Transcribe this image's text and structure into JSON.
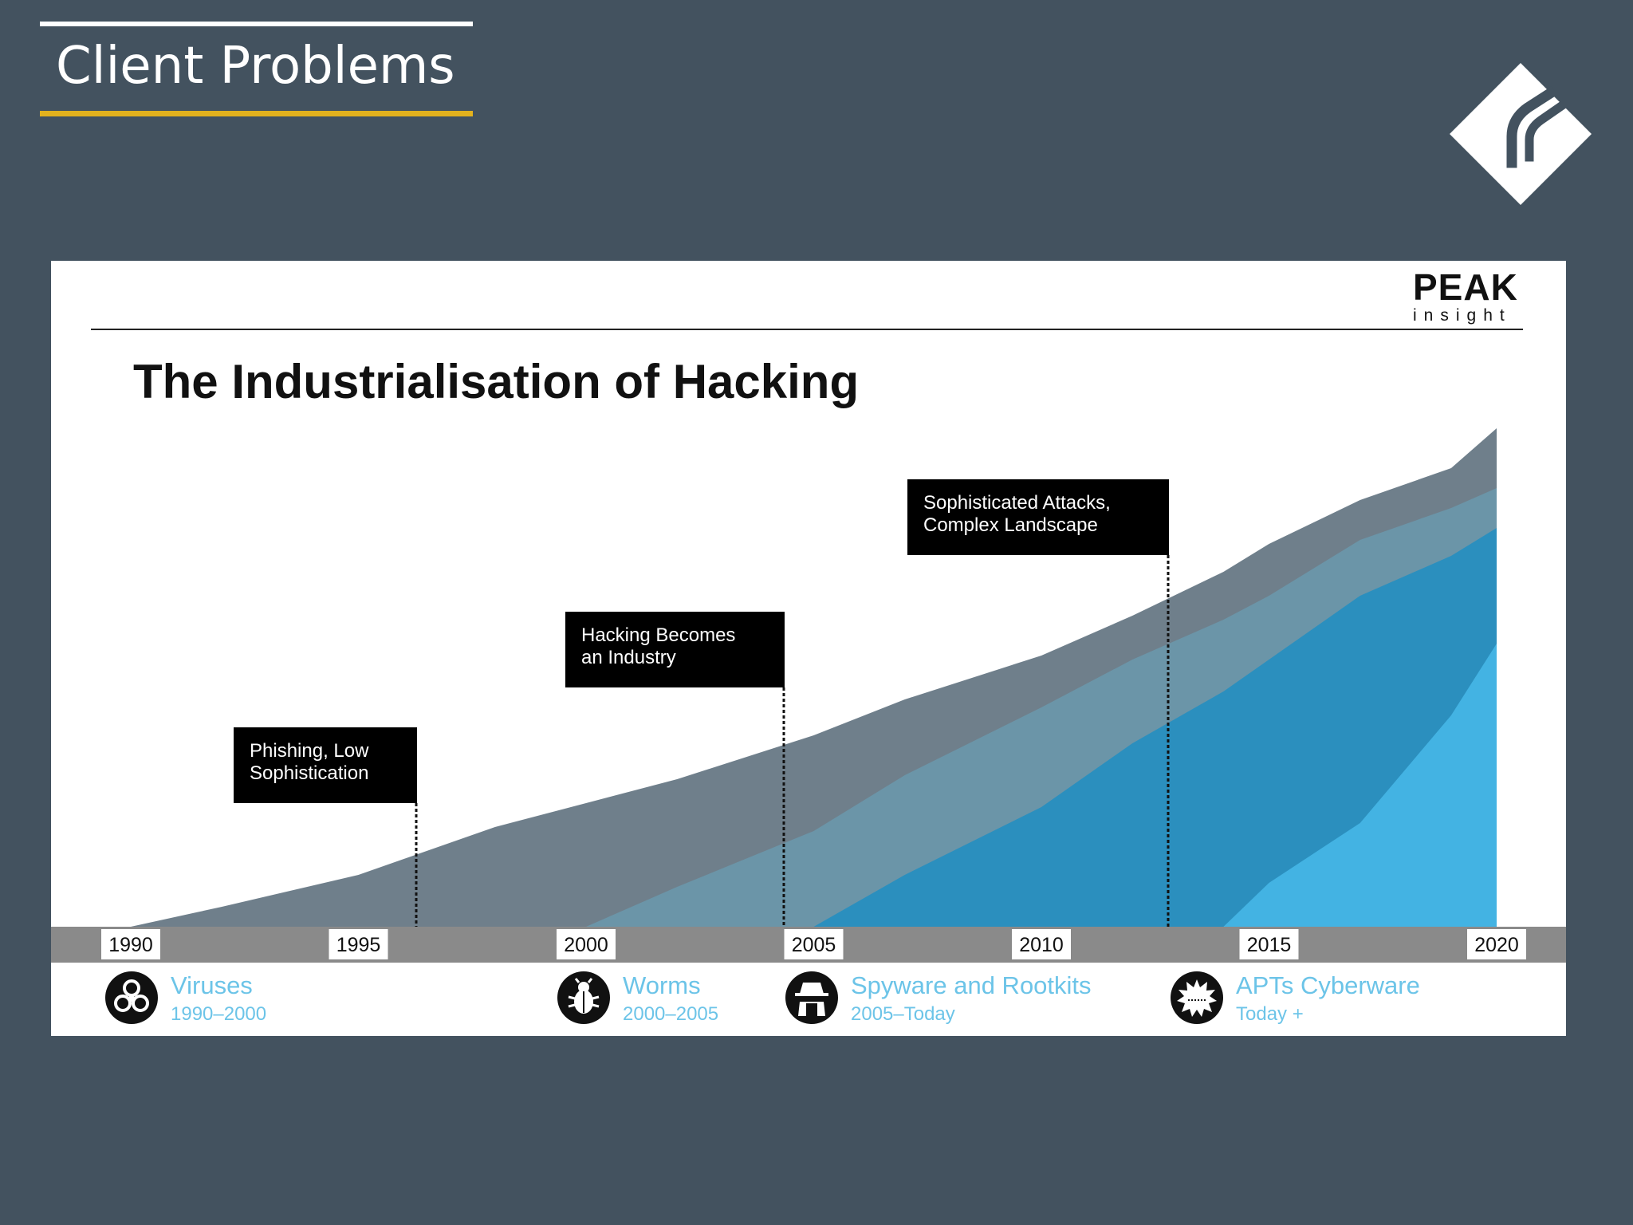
{
  "slide": {
    "title": "Client Problems"
  },
  "panel": {
    "logo_text": "PEAK",
    "logo_subtext": "insight",
    "heading": "The Industrialisation of Hacking"
  },
  "chart_data": {
    "type": "area",
    "x_range": [
      1990,
      2020
    ],
    "tick_labels": [
      "1990",
      "1995",
      "2000",
      "2005",
      "2010",
      "2015",
      "2020"
    ],
    "y_axis_shown": false,
    "series": [
      {
        "color": "#6f7f8b",
        "points": [
          [
            1990,
            0
          ],
          [
            1992,
            5
          ],
          [
            1995,
            13
          ],
          [
            1998,
            25
          ],
          [
            2000,
            31
          ],
          [
            2002,
            37
          ],
          [
            2005,
            48
          ],
          [
            2007,
            57
          ],
          [
            2010,
            68
          ],
          [
            2012,
            78
          ],
          [
            2014,
            89
          ],
          [
            2015,
            96
          ],
          [
            2017,
            107
          ],
          [
            2019,
            115
          ],
          [
            2020,
            125
          ]
        ]
      },
      {
        "color": "#6b95a8",
        "points": [
          [
            2000,
            0
          ],
          [
            2002,
            10
          ],
          [
            2005,
            24
          ],
          [
            2007,
            38
          ],
          [
            2010,
            55
          ],
          [
            2012,
            67
          ],
          [
            2014,
            77
          ],
          [
            2015,
            83
          ],
          [
            2017,
            97
          ],
          [
            2019,
            105
          ],
          [
            2020,
            110
          ]
        ]
      },
      {
        "color": "#2b8fbe",
        "points": [
          [
            2005,
            0
          ],
          [
            2007,
            13
          ],
          [
            2010,
            30
          ],
          [
            2012,
            46
          ],
          [
            2014,
            59
          ],
          [
            2015,
            67
          ],
          [
            2017,
            83
          ],
          [
            2019,
            93
          ],
          [
            2020,
            100
          ]
        ]
      },
      {
        "color": "#43b3e3",
        "points": [
          [
            2014,
            0
          ],
          [
            2015,
            11
          ],
          [
            2017,
            26
          ],
          [
            2019,
            53
          ],
          [
            2020,
            71
          ]
        ]
      }
    ],
    "annotations": [
      {
        "text_line1": "Phishing, Low",
        "text_line2": "Sophistication",
        "year": 1996
      },
      {
        "text_line1": "Hacking Becomes",
        "text_line2": "an Industry",
        "year": 2004
      },
      {
        "text_line1": "Sophisticated Attacks,",
        "text_line2": "Complex Landscape",
        "year": 2013
      }
    ]
  },
  "legend": [
    {
      "name": "Viruses",
      "period": "1990–2000",
      "icon": "biohazard-icon"
    },
    {
      "name": "Worms",
      "period": "2000–2005",
      "icon": "bug-icon"
    },
    {
      "name": "Spyware and Rootkits",
      "period": "2005–Today",
      "icon": "spy-icon"
    },
    {
      "name": "APTs Cyberware",
      "period": "Today +",
      "icon": "gear-burst-icon"
    }
  ],
  "colors": {
    "background": "#43525f",
    "title_accent": "#e3b21d",
    "legend_text": "#6cc4e8",
    "axis_band": "#8a8a8a"
  }
}
